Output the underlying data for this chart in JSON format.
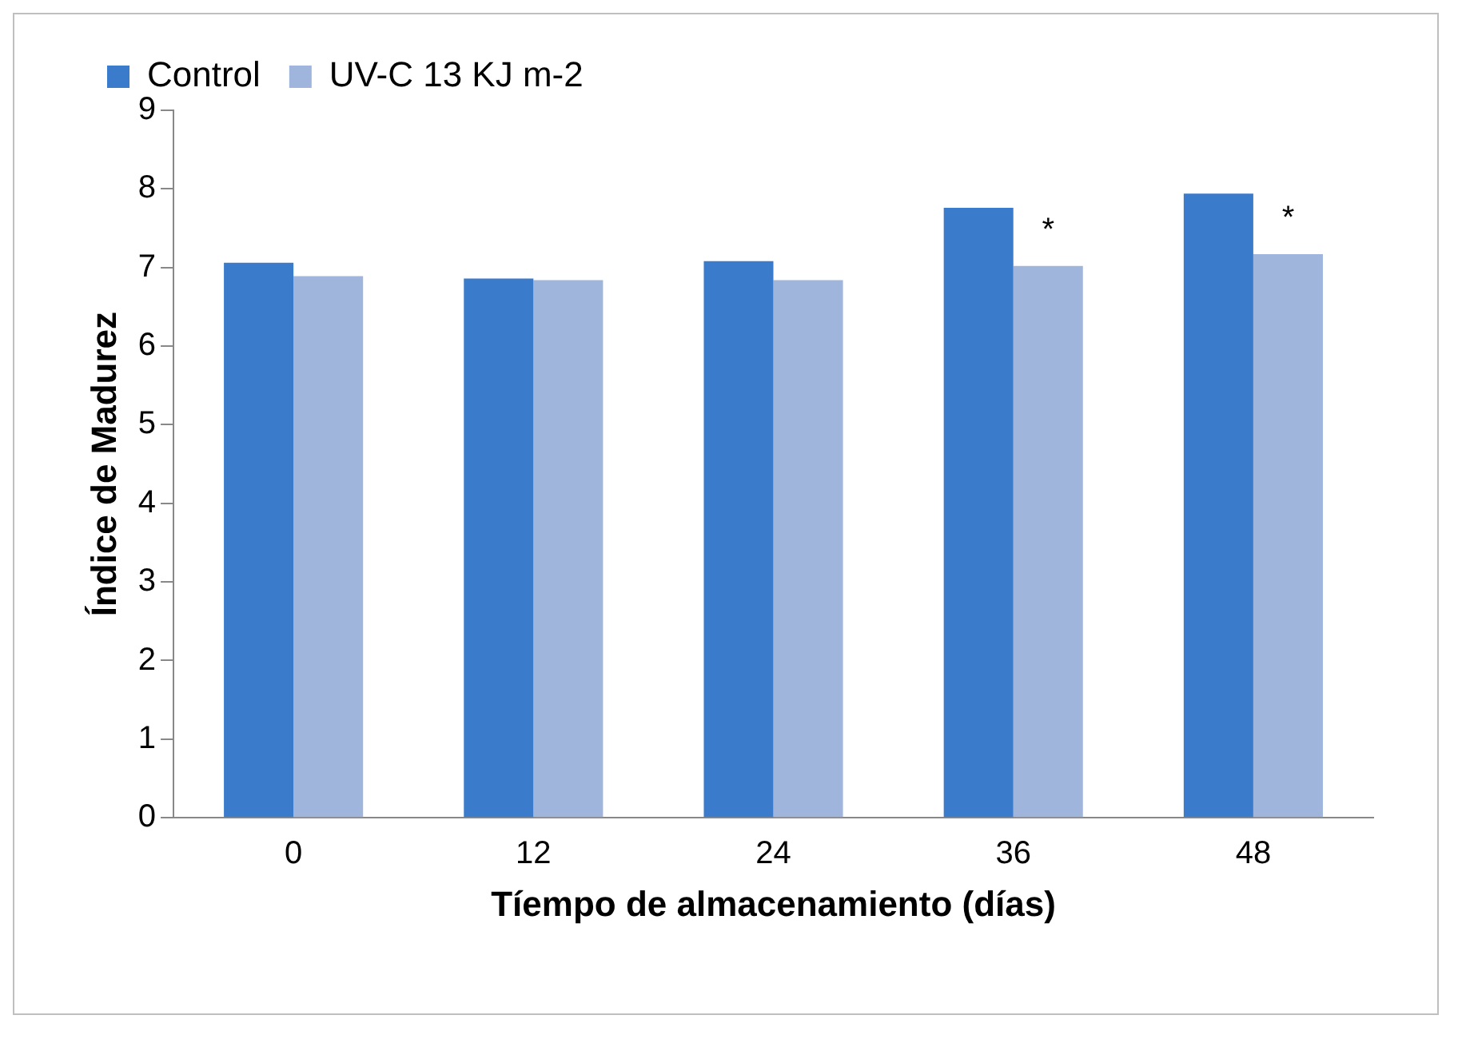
{
  "chart_data": {
    "type": "bar",
    "xlabel": "Tíempo de almacenamiento (días)",
    "ylabel": "Índice de Madurez",
    "categories": [
      "0",
      "12",
      "24",
      "36",
      "48"
    ],
    "series": [
      {
        "name": "Control",
        "color": "#3a7bcc",
        "values": [
          7.06,
          6.86,
          7.08,
          7.76,
          7.94
        ]
      },
      {
        "name": "UV-C 13 KJ m-2",
        "color": "#a0b5dc",
        "values": [
          6.89,
          6.84,
          6.84,
          7.02,
          7.17
        ]
      }
    ],
    "ylim": [
      0,
      9
    ],
    "yticks": [
      0,
      1,
      2,
      3,
      4,
      5,
      6,
      7,
      8,
      9
    ],
    "grid": false,
    "legend": "top left",
    "annotations": [
      {
        "text": "*",
        "x": "36",
        "y": 7.02
      },
      {
        "text": "*",
        "x": "48",
        "y": 7.17
      }
    ]
  }
}
